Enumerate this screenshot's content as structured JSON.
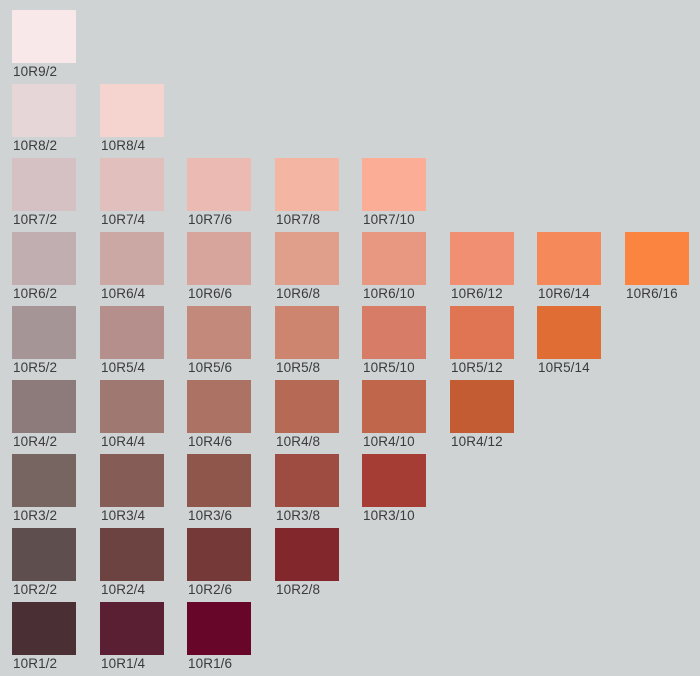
{
  "chips": [
    {
      "label": "10R9/2",
      "value": 9,
      "chroma": 2,
      "color": "#f8e8ea"
    },
    {
      "label": "10R8/2",
      "value": 8,
      "chroma": 2,
      "color": "#e7d6d8"
    },
    {
      "label": "10R8/4",
      "value": 8,
      "chroma": 4,
      "color": "#f5d3cf"
    },
    {
      "label": "10R7/2",
      "value": 7,
      "chroma": 2,
      "color": "#d5c1c4"
    },
    {
      "label": "10R7/4",
      "value": 7,
      "chroma": 4,
      "color": "#e1bfbd"
    },
    {
      "label": "10R7/6",
      "value": 7,
      "chroma": 6,
      "color": "#ebbab2"
    },
    {
      "label": "10R7/8",
      "value": 7,
      "chroma": 8,
      "color": "#f4b6a2"
    },
    {
      "label": "10R7/10",
      "value": 7,
      "chroma": 10,
      "color": "#fbae95"
    },
    {
      "label": "10R6/2",
      "value": 6,
      "chroma": 2,
      "color": "#c0aeb0"
    },
    {
      "label": "10R6/4",
      "value": 6,
      "chroma": 4,
      "color": "#cca8a4"
    },
    {
      "label": "10R6/6",
      "value": 6,
      "chroma": 6,
      "color": "#d7a59c"
    },
    {
      "label": "10R6/8",
      "value": 6,
      "chroma": 8,
      "color": "#e09f8b"
    },
    {
      "label": "10R6/10",
      "value": 6,
      "chroma": 10,
      "color": "#e89880"
    },
    {
      "label": "10R6/12",
      "value": 6,
      "chroma": 12,
      "color": "#f08f72"
    },
    {
      "label": "10R6/14",
      "value": 6,
      "chroma": 14,
      "color": "#f6895a"
    },
    {
      "label": "10R6/16",
      "value": 6,
      "chroma": 16,
      "color": "#fb8440"
    },
    {
      "label": "10R5/2",
      "value": 5,
      "chroma": 2,
      "color": "#a69597"
    },
    {
      "label": "10R5/4",
      "value": 5,
      "chroma": 4,
      "color": "#b58f8c"
    },
    {
      "label": "10R5/6",
      "value": 5,
      "chroma": 6,
      "color": "#c38a7c"
    },
    {
      "label": "10R5/8",
      "value": 5,
      "chroma": 8,
      "color": "#cd8570"
    },
    {
      "label": "10R5/10",
      "value": 5,
      "chroma": 10,
      "color": "#d77c67"
    },
    {
      "label": "10R5/12",
      "value": 5,
      "chroma": 12,
      "color": "#df7553"
    },
    {
      "label": "10R5/14",
      "value": 5,
      "chroma": 14,
      "color": "#e06d33"
    },
    {
      "label": "10R4/2",
      "value": 4,
      "chroma": 2,
      "color": "#8d7b7b"
    },
    {
      "label": "10R4/4",
      "value": 4,
      "chroma": 4,
      "color": "#9e7871"
    },
    {
      "label": "10R4/6",
      "value": 4,
      "chroma": 6,
      "color": "#ac7264"
    },
    {
      "label": "10R4/8",
      "value": 4,
      "chroma": 8,
      "color": "#b66a55"
    },
    {
      "label": "10R4/10",
      "value": 4,
      "chroma": 10,
      "color": "#c0664a"
    },
    {
      "label": "10R4/12",
      "value": 4,
      "chroma": 12,
      "color": "#c45c33"
    },
    {
      "label": "10R3/2",
      "value": 3,
      "chroma": 2,
      "color": "#776561"
    },
    {
      "label": "10R3/4",
      "value": 3,
      "chroma": 4,
      "color": "#855c56"
    },
    {
      "label": "10R3/6",
      "value": 3,
      "chroma": 6,
      "color": "#8f574b"
    },
    {
      "label": "10R3/8",
      "value": 3,
      "chroma": 8,
      "color": "#9e4b42"
    },
    {
      "label": "10R3/10",
      "value": 3,
      "chroma": 10,
      "color": "#a63d35"
    },
    {
      "label": "10R2/2",
      "value": 2,
      "chroma": 2,
      "color": "#5e4e4d"
    },
    {
      "label": "10R2/4",
      "value": 2,
      "chroma": 4,
      "color": "#6d4341"
    },
    {
      "label": "10R2/6",
      "value": 2,
      "chroma": 6,
      "color": "#753a37"
    },
    {
      "label": "10R2/8",
      "value": 2,
      "chroma": 8,
      "color": "#82272b"
    },
    {
      "label": "10R1/2",
      "value": 1,
      "chroma": 2,
      "color": "#4a3034"
    },
    {
      "label": "10R1/4",
      "value": 1,
      "chroma": 4,
      "color": "#5b1f33"
    },
    {
      "label": "10R1/6",
      "value": 1,
      "chroma": 6,
      "color": "#670629"
    }
  ]
}
